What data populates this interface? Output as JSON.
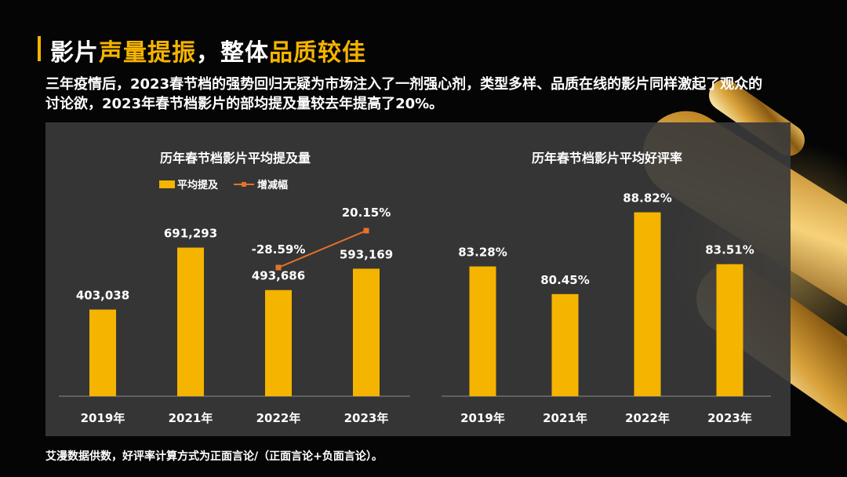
{
  "title": {
    "part1": "影片",
    "part2": "声量提振",
    "part3": "，整体",
    "part4": "品质较佳"
  },
  "description": "三年疫情后，2023春节档的强势回归无疑为市场注入了一剂强心剂，类型多样、品质在线的影片同样激起了观众的讨论欲，2023年春节档影片的部均提及量较去年提高了20%。",
  "footer": "艾漫数据供数，好评率计算方式为正面言论/（正面言论+负面言论）。",
  "colors": {
    "accent": "#f5b400",
    "line": "#e8712a",
    "panel": "#3a3a3a"
  },
  "chart_data": [
    {
      "type": "bar",
      "title": "历年春节档影片平均提及量",
      "categories": [
        "2019年",
        "2021年",
        "2022年",
        "2023年"
      ],
      "series": [
        {
          "name": "平均提及",
          "values": [
            403038,
            691293,
            493686,
            593169
          ],
          "labels": [
            "403,038",
            "691,293",
            "493,686",
            "593,169"
          ]
        },
        {
          "name": "增减幅",
          "type": "line",
          "values": [
            null,
            null,
            -28.59,
            20.15
          ],
          "labels": [
            "",
            "",
            "-28.59%",
            "20.15%"
          ]
        }
      ],
      "ylim": [
        0,
        1000000
      ],
      "legend": "top-center"
    },
    {
      "type": "bar",
      "title": "历年春节档影片平均好评率",
      "categories": [
        "2019年",
        "2021年",
        "2022年",
        "2023年"
      ],
      "series": [
        {
          "values": [
            83.28,
            80.45,
            88.82,
            83.51
          ],
          "labels": [
            "83.28%",
            "80.45%",
            "88.82%",
            "83.51%"
          ]
        }
      ],
      "ylim": [
        70,
        92
      ]
    }
  ]
}
